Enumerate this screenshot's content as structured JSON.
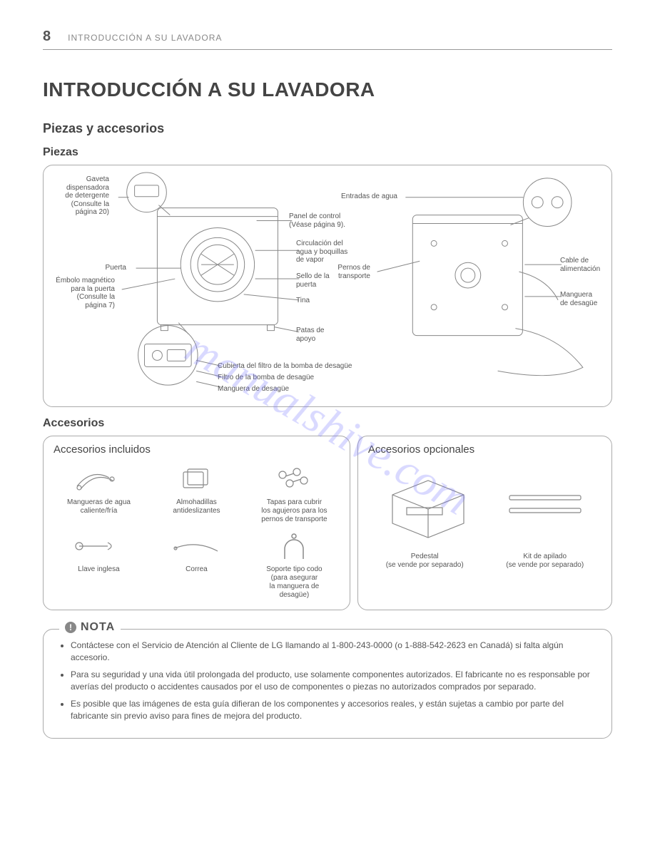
{
  "page": {
    "number": "8",
    "header_title": "INTRODUCCIÓN A SU LAVADORA"
  },
  "main_title": "INTRODUCCIÓN A SU LAVADORA",
  "section_parts": "Piezas y accesorios",
  "subsection_piezas": "Piezas",
  "subsection_accesorios": "Accesorios",
  "piezas_labels": {
    "gaveta": "Gaveta\ndispensadora\nde detergente\n(Consulte la\npágina 20)",
    "panel": "Panel de control\n(Véase página 9).",
    "circulacion": "Circulación del\nagua y boquillas\nde vapor",
    "puerta": "Puerta",
    "sello": "Sello de la\npuerta",
    "tina": "Tina",
    "embolo": "Émbolo magnético\npara la puerta\n(Consulte la\npágina 7)",
    "patas": "Patas de\napoyo",
    "cubierta_filtro": "Cubierta del filtro de la bomba de desagüe",
    "filtro": "Filtro de la bomba de desagüe",
    "manguera_front": "Manguera de desagüe",
    "entradas": "Entradas de agua",
    "pernos": "Pernos de\ntransporte",
    "cable": "Cable de\nalimentación",
    "manguera_back": "Manguera\nde desagüe"
  },
  "accesorios": {
    "incluidos_title": "Accesorios incluidos",
    "opcionales_title": "Accesorios opcionales",
    "items_left": {
      "mangueras": "Mangueras de agua\ncaliente/fría",
      "almohadillas": "Almohadillas\nantideslizantes",
      "tapas": "Tapas para cubrir\nlos agujeros para los\npernos de transporte",
      "llave": "Llave inglesa",
      "correa": "Correa",
      "soporte": "Soporte tipo codo\n(para asegurar\nla manguera de\ndesagüe)"
    },
    "items_right": {
      "pedestal": "Pedestal\n(se vende por separado)",
      "kit": "Kit de apilado\n(se vende por separado)"
    }
  },
  "nota": {
    "title": "NOTA",
    "items": [
      "Contáctese con el Servicio de Atención al Cliente de LG llamando al 1-800-243-0000 (o 1-888-542-2623 en Canadá) si falta algún accesorio.",
      "Para su seguridad y una vida útil prolongada del producto, use solamente componentes autorizados. El fabricante no es responsable por averías del producto o accidentes causados por el uso de componentes o piezas no autorizados comprados por separado.",
      "Es posible que las imágenes de esta guía difieran de los componentes y accesorios reales, y están sujetas a cambio por parte del fabricante sin previo aviso para fines de mejora del producto."
    ]
  },
  "watermark": "manualshive.com",
  "style": {
    "border_color": "#aaaaaa",
    "text_color": "#555555",
    "accent_color": "#888888",
    "watermark_color": "rgba(120,120,255,0.28)",
    "stroke": "#888"
  }
}
